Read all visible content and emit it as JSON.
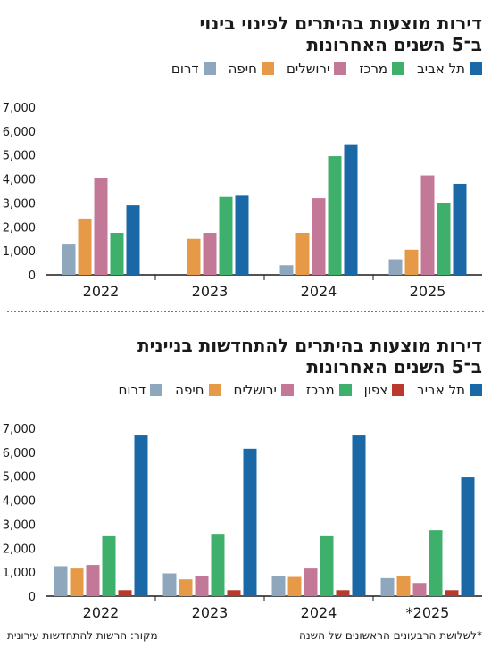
{
  "chart_data": [
    {
      "type": "bar",
      "title": "דירות מוצעות בהיתרים לפינוי בינוי",
      "subtitle": "ב־5 השנים האחרונות",
      "categories": [
        "2022",
        "2023",
        "2024",
        "2025"
      ],
      "series": [
        {
          "name": "דרום",
          "color": "#8fa7bd",
          "values": [
            1300,
            0,
            400,
            650
          ]
        },
        {
          "name": "חיפה",
          "color": "#e69a47",
          "values": [
            2350,
            1500,
            1750,
            1050
          ]
        },
        {
          "name": "ירושלים",
          "color": "#c47898",
          "values": [
            4050,
            1750,
            3200,
            4150
          ]
        },
        {
          "name": "מרכז",
          "color": "#3fb06b",
          "values": [
            1750,
            3250,
            4950,
            3000
          ]
        },
        {
          "name": "תל אביב",
          "color": "#1b68a6",
          "values": [
            2900,
            3300,
            5450,
            3800
          ]
        }
      ],
      "ylim": [
        0,
        7000
      ],
      "yticks": [
        "7,000",
        "6,000",
        "5,000",
        "4,000",
        "3,000",
        "2,000",
        "1,000",
        "0"
      ],
      "xlabel": "",
      "ylabel": "",
      "grid": false,
      "legend": "top-right"
    },
    {
      "type": "bar",
      "title": "דירות מוצעות בהיתרים להתחדשות בניינית",
      "subtitle": "ב־5 השנים האחרונות",
      "categories": [
        "2022",
        "2023",
        "2024",
        "*2025"
      ],
      "series": [
        {
          "name": "דרום",
          "color": "#8fa7bd",
          "values": [
            1250,
            950,
            850,
            750
          ]
        },
        {
          "name": "חיפה",
          "color": "#e69a47",
          "values": [
            1150,
            700,
            800,
            850
          ]
        },
        {
          "name": "ירושלים",
          "color": "#c47898",
          "values": [
            1300,
            850,
            1150,
            550
          ]
        },
        {
          "name": "מרכז",
          "color": "#3fb06b",
          "values": [
            2500,
            2600,
            2500,
            2750
          ]
        },
        {
          "name": "צפון",
          "color": "#b93a2c",
          "values": [
            250,
            250,
            250,
            250
          ]
        },
        {
          "name": "תל אביב",
          "color": "#1b68a6",
          "values": [
            6700,
            6150,
            6700,
            4950
          ]
        }
      ],
      "ylim": [
        0,
        7000
      ],
      "yticks": [
        "7,000",
        "6,000",
        "5,000",
        "4,000",
        "3,000",
        "2,000",
        "1,000",
        "0"
      ],
      "xlabel": "",
      "ylabel": "",
      "grid": false,
      "legend": "top-right"
    }
  ],
  "footer": {
    "note": "*לשלושת הרבעונים הראשונים של השנה",
    "source": "מקור: הרשות להתחדשות עירונית"
  }
}
